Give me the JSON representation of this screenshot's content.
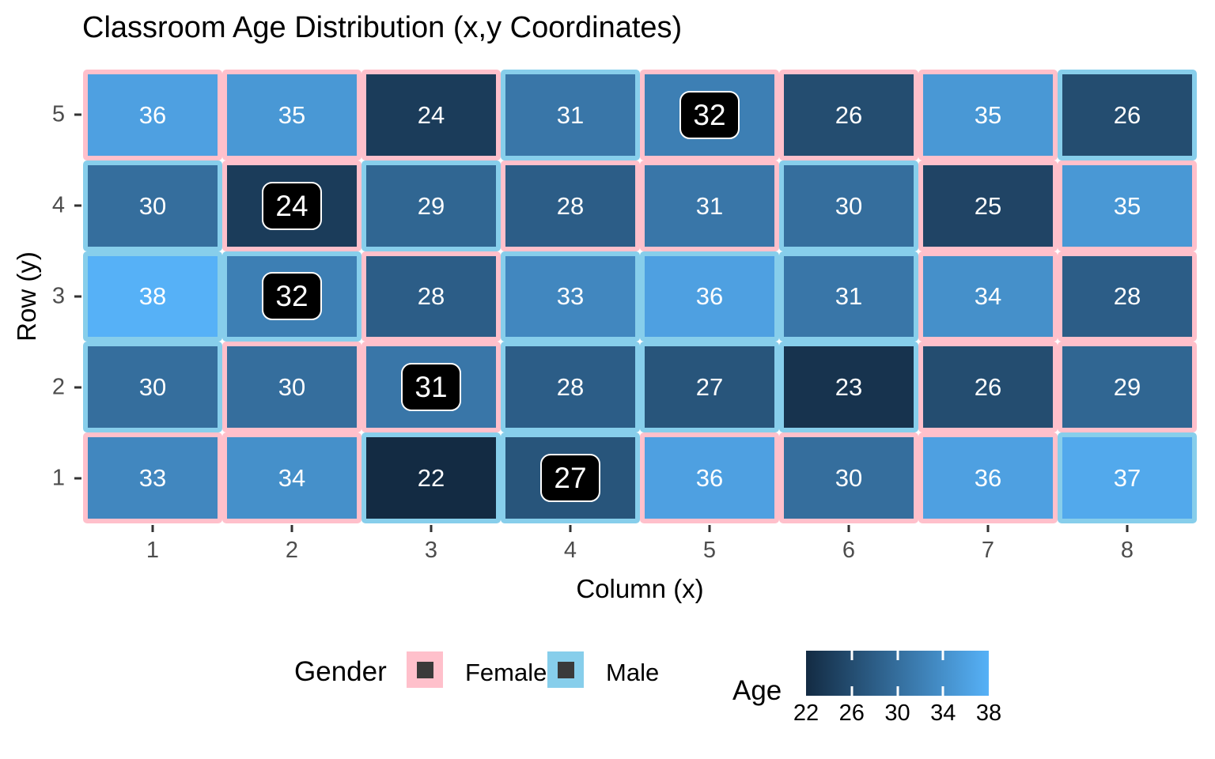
{
  "title": "Classroom Age Distribution (x,y Coordinates)",
  "chart_data": {
    "type": "heatmap",
    "title": "Classroom Age Distribution (x,y Coordinates)",
    "xlabel": "Column (x)",
    "ylabel": "Row (y)",
    "x_ticks": [
      "1",
      "2",
      "3",
      "4",
      "5",
      "6",
      "7",
      "8"
    ],
    "y_ticks": [
      "5",
      "4",
      "3",
      "2",
      "1"
    ],
    "grid": {
      "columns": 8,
      "rows": 5
    },
    "fill_scale": {
      "field": "Age",
      "min": 22,
      "max": 38,
      "low_color": "#132B43",
      "high_color": "#56B1F7"
    },
    "gender_colors": {
      "Female": "#FFC0CB",
      "Male": "#87CEEB"
    },
    "cells": [
      {
        "x": 1,
        "y": 5,
        "age": 36,
        "gender": "Female",
        "labeled": false
      },
      {
        "x": 2,
        "y": 5,
        "age": 35,
        "gender": "Female",
        "labeled": false
      },
      {
        "x": 3,
        "y": 5,
        "age": 24,
        "gender": "Female",
        "labeled": false
      },
      {
        "x": 4,
        "y": 5,
        "age": 31,
        "gender": "Male",
        "labeled": false
      },
      {
        "x": 5,
        "y": 5,
        "age": 32,
        "gender": "Female",
        "labeled": true
      },
      {
        "x": 6,
        "y": 5,
        "age": 26,
        "gender": "Female",
        "labeled": false
      },
      {
        "x": 7,
        "y": 5,
        "age": 35,
        "gender": "Female",
        "labeled": false
      },
      {
        "x": 8,
        "y": 5,
        "age": 26,
        "gender": "Male",
        "labeled": false
      },
      {
        "x": 1,
        "y": 4,
        "age": 30,
        "gender": "Male",
        "labeled": false
      },
      {
        "x": 2,
        "y": 4,
        "age": 24,
        "gender": "Female",
        "labeled": true
      },
      {
        "x": 3,
        "y": 4,
        "age": 29,
        "gender": "Male",
        "labeled": false
      },
      {
        "x": 4,
        "y": 4,
        "age": 28,
        "gender": "Female",
        "labeled": false
      },
      {
        "x": 5,
        "y": 4,
        "age": 31,
        "gender": "Female",
        "labeled": false
      },
      {
        "x": 6,
        "y": 4,
        "age": 30,
        "gender": "Male",
        "labeled": false
      },
      {
        "x": 7,
        "y": 4,
        "age": 25,
        "gender": "Female",
        "labeled": false
      },
      {
        "x": 8,
        "y": 4,
        "age": 35,
        "gender": "Female",
        "labeled": false
      },
      {
        "x": 1,
        "y": 3,
        "age": 38,
        "gender": "Male",
        "labeled": false
      },
      {
        "x": 2,
        "y": 3,
        "age": 32,
        "gender": "Male",
        "labeled": true
      },
      {
        "x": 3,
        "y": 3,
        "age": 28,
        "gender": "Female",
        "labeled": false
      },
      {
        "x": 4,
        "y": 3,
        "age": 33,
        "gender": "Male",
        "labeled": false
      },
      {
        "x": 5,
        "y": 3,
        "age": 36,
        "gender": "Male",
        "labeled": false
      },
      {
        "x": 6,
        "y": 3,
        "age": 31,
        "gender": "Male",
        "labeled": false
      },
      {
        "x": 7,
        "y": 3,
        "age": 34,
        "gender": "Female",
        "labeled": false
      },
      {
        "x": 8,
        "y": 3,
        "age": 28,
        "gender": "Female",
        "labeled": false
      },
      {
        "x": 1,
        "y": 2,
        "age": 30,
        "gender": "Male",
        "labeled": false
      },
      {
        "x": 2,
        "y": 2,
        "age": 30,
        "gender": "Female",
        "labeled": false
      },
      {
        "x": 3,
        "y": 2,
        "age": 31,
        "gender": "Female",
        "labeled": true
      },
      {
        "x": 4,
        "y": 2,
        "age": 28,
        "gender": "Male",
        "labeled": false
      },
      {
        "x": 5,
        "y": 2,
        "age": 27,
        "gender": "Male",
        "labeled": false
      },
      {
        "x": 6,
        "y": 2,
        "age": 23,
        "gender": "Male",
        "labeled": false
      },
      {
        "x": 7,
        "y": 2,
        "age": 26,
        "gender": "Female",
        "labeled": false
      },
      {
        "x": 8,
        "y": 2,
        "age": 29,
        "gender": "Female",
        "labeled": false
      },
      {
        "x": 1,
        "y": 1,
        "age": 33,
        "gender": "Female",
        "labeled": false
      },
      {
        "x": 2,
        "y": 1,
        "age": 34,
        "gender": "Female",
        "labeled": false
      },
      {
        "x": 3,
        "y": 1,
        "age": 22,
        "gender": "Male",
        "labeled": false
      },
      {
        "x": 4,
        "y": 1,
        "age": 27,
        "gender": "Male",
        "labeled": true
      },
      {
        "x": 5,
        "y": 1,
        "age": 36,
        "gender": "Female",
        "labeled": false
      },
      {
        "x": 6,
        "y": 1,
        "age": 30,
        "gender": "Female",
        "labeled": false
      },
      {
        "x": 7,
        "y": 1,
        "age": 36,
        "gender": "Female",
        "labeled": false
      },
      {
        "x": 8,
        "y": 1,
        "age": 37,
        "gender": "Male",
        "labeled": false
      }
    ],
    "legend_position": "bottom"
  },
  "legend": {
    "gender": {
      "title": "Gender",
      "items": [
        {
          "label": "Female",
          "color": "#FFC0CB"
        },
        {
          "label": "Male",
          "color": "#87CEEB"
        }
      ],
      "key_inner_color": "#3A3A3A"
    },
    "age": {
      "title": "Age",
      "tick_labels": [
        "22",
        "26",
        "30",
        "34",
        "38"
      ],
      "gradient_low": "#132B43",
      "gradient_high": "#56B1F7"
    }
  }
}
